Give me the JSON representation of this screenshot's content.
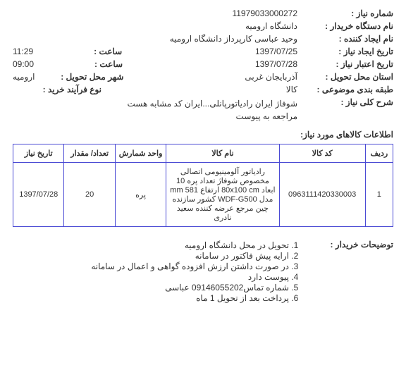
{
  "header": {
    "niaz_no_label": "شماره نیاز :",
    "niaz_no": "11979033000272",
    "buyer_label": "نام دستگاه خریدار :",
    "buyer": "دانشگاه ارومیه",
    "creator_label": "نام ایجاد کننده :",
    "creator": "وحید عباسی کارپرداز دانشگاه ارومیه",
    "create_date_label": "تاریخ ایجاد نیاز :",
    "create_date": "1397/07/25",
    "create_time_label": "ساعت :",
    "create_time": "11:29",
    "valid_date_label": "تاریخ اعتبار نیاز :",
    "valid_date": "1397/07/28",
    "valid_time_label": "ساعت :",
    "valid_time": "09:00",
    "province_label": "استان محل تحویل :",
    "province": "آذربایجان غربی",
    "city_label": "شهر محل تحویل :",
    "city": "ارومیه",
    "class_label": "طبقه بندی موضوعی :",
    "class": "کالا",
    "process_label": "نوع فرآیند خرید :",
    "process": "",
    "summary_label": "شرح کلی نیاز :",
    "summary_line1": "شوفاژ ایران رادیاتورپانلی...ایران کد مشابه هست",
    "summary_line2": "مراجعه به پیوست"
  },
  "items_section_title": "اطلاعات کالاهای مورد نیاز:",
  "table": {
    "headers": {
      "radif": "ردیف",
      "code": "کد کالا",
      "name": "نام کالا",
      "unit": "واحد شمارش",
      "qty": "تعداد/ مقدار",
      "date": "تاریخ نیاز"
    },
    "rows": [
      {
        "radif": "1",
        "code": "0963111420330003",
        "name": "رادیاتور آلومینیومی اتصالی مخصوص شوفاژ تعداد پره 10 ابعاد 80x100 cm ارتفاع 581 mm مدل WDF-G500 کشور سازنده چین مرجع عرضه کننده سعید نادری",
        "unit": "پره",
        "qty": "20",
        "date": "1397/07/28"
      }
    ]
  },
  "buyer_notes": {
    "label": "توضیحات خریدار :",
    "lines": [
      "تحویل در محل دانشگاه ارومیه",
      "ارایه پیش فاکتور در سامانه",
      "در صورت داشتن ارزش افزوده گواهی و اعمال در سامانه",
      "پیوست دارد",
      "شماره تماس09146055202 عباسی",
      "پرداخت بعد از تحویل 1 ماه"
    ]
  }
}
